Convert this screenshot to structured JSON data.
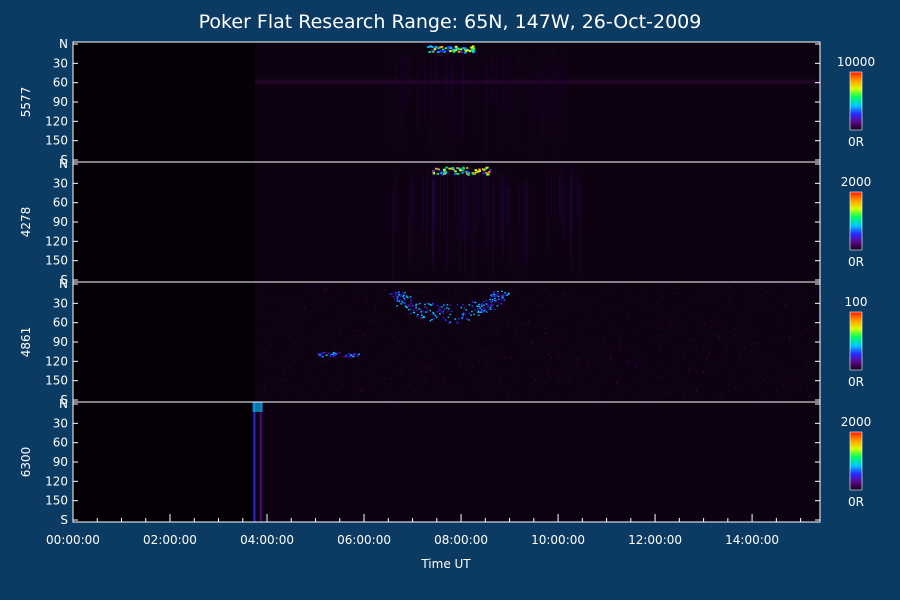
{
  "chart_data": {
    "type": "heatmap",
    "title": "Poker Flat Research Range: 65N, 147W, 26-Oct-2009",
    "xlabel": "Time UT",
    "x_range_hours": [
      0,
      15.4
    ],
    "x_ticks": [
      {
        "hour": 0,
        "label": "00:00:00"
      },
      {
        "hour": 2,
        "label": "02:00:00"
      },
      {
        "hour": 4,
        "label": "04:00:00"
      },
      {
        "hour": 6,
        "label": "06:00:00"
      },
      {
        "hour": 8,
        "label": "08:00:00"
      },
      {
        "hour": 10,
        "label": "10:00:00"
      },
      {
        "hour": 12,
        "label": "12:00:00"
      },
      {
        "hour": 14,
        "label": "14:00:00"
      }
    ],
    "y_range_deg": [
      0,
      180
    ],
    "y_ticks": [
      {
        "deg": 0,
        "label": "N"
      },
      {
        "deg": 30,
        "label": "30"
      },
      {
        "deg": 60,
        "label": "60"
      },
      {
        "deg": 90,
        "label": "90"
      },
      {
        "deg": 120,
        "label": "120"
      },
      {
        "deg": 150,
        "label": "150"
      },
      {
        "deg": 180,
        "label": "S"
      }
    ],
    "colormap": [
      "#120018",
      "#5a0a8c",
      "#2a2aff",
      "#00c8ff",
      "#00ff60",
      "#d8ff00",
      "#ffa000",
      "#ff1800"
    ],
    "panels": [
      {
        "name": "5577",
        "cb_max": "10000",
        "cb_min": "0R",
        "data_start_hour": 3.75,
        "features": [
          {
            "kind": "arc",
            "t0": 7.3,
            "t1": 8.3,
            "deg0": 2,
            "deg1": 12,
            "intensity": 0.65
          },
          {
            "kind": "band",
            "t0": 3.75,
            "t1": 15.4,
            "deg0": 55,
            "deg1": 62,
            "intensity": 0.12
          },
          {
            "kind": "haze",
            "t0": 6.5,
            "t1": 10.2,
            "deg0": 0,
            "deg1": 180,
            "intensity": 0.1
          }
        ]
      },
      {
        "name": "4278",
        "cb_max": "2000",
        "cb_min": "0R",
        "data_start_hour": 3.75,
        "features": [
          {
            "kind": "arc",
            "t0": 7.4,
            "t1": 8.6,
            "deg0": 4,
            "deg1": 16,
            "intensity": 0.75
          },
          {
            "kind": "haze",
            "t0": 6.5,
            "t1": 10.5,
            "deg0": 0,
            "deg1": 180,
            "intensity": 0.16
          }
        ]
      },
      {
        "name": "4861",
        "cb_max": "100",
        "cb_min": "0R",
        "data_start_hour": 3.75,
        "features": [
          {
            "kind": "oval",
            "t0": 6.5,
            "t1": 9.0,
            "deg0": 10,
            "deg1": 60,
            "intensity": 0.45
          },
          {
            "kind": "blob",
            "t0": 5.0,
            "t1": 5.9,
            "deg0": 105,
            "deg1": 112,
            "intensity": 0.4
          },
          {
            "kind": "noise",
            "t0": 3.75,
            "t1": 15.4,
            "deg0": 0,
            "deg1": 180,
            "intensity": 0.2
          }
        ]
      },
      {
        "name": "6300",
        "cb_max": "2000",
        "cb_min": "0R",
        "data_start_hour": 3.75,
        "features": [
          {
            "kind": "stripe",
            "t0": 3.72,
            "t1": 3.85,
            "deg0": 0,
            "deg1": 180,
            "intensity": 0.35
          }
        ]
      }
    ]
  }
}
